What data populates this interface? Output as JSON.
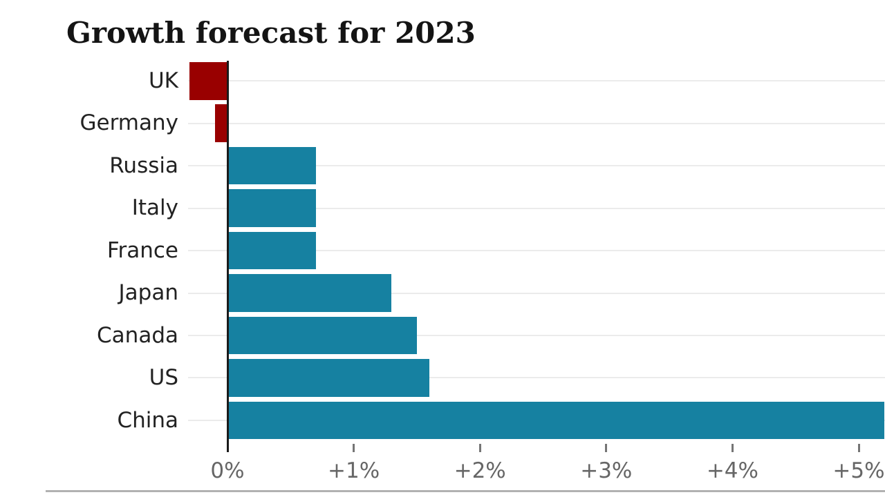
{
  "title": "Growth forecast for 2023",
  "chart_data": {
    "type": "bar",
    "orientation": "horizontal",
    "title": "Growth forecast for 2023",
    "xlabel": "",
    "ylabel": "",
    "unit": "%",
    "categories": [
      "UK",
      "Germany",
      "Russia",
      "Italy",
      "France",
      "Japan",
      "Canada",
      "US",
      "China"
    ],
    "values": [
      -0.3,
      -0.1,
      0.7,
      0.7,
      0.7,
      1.3,
      1.5,
      1.6,
      5.2
    ],
    "xlim": [
      -0.31,
      5.21
    ],
    "x_ticks": [
      {
        "value": 0,
        "label": "0%"
      },
      {
        "value": 1,
        "label": "+1%"
      },
      {
        "value": 2,
        "label": "+2%"
      },
      {
        "value": 3,
        "label": "+3%"
      },
      {
        "value": 4,
        "label": "+4%"
      },
      {
        "value": 5,
        "label": "+5%"
      }
    ],
    "grid": "horizontal-row-lines",
    "legend": "none",
    "colors": {
      "positive_bar": "#1681a1",
      "negative_bar": "#990000",
      "gridline": "#ebebeb",
      "axis_line": "#1a1a1a",
      "tick_mark": "#757575",
      "tick_label_text": "#666666",
      "category_label_text": "#222222",
      "title_text": "#141414",
      "footer_divider": "#b1b1b1",
      "background": "#ffffff"
    }
  }
}
